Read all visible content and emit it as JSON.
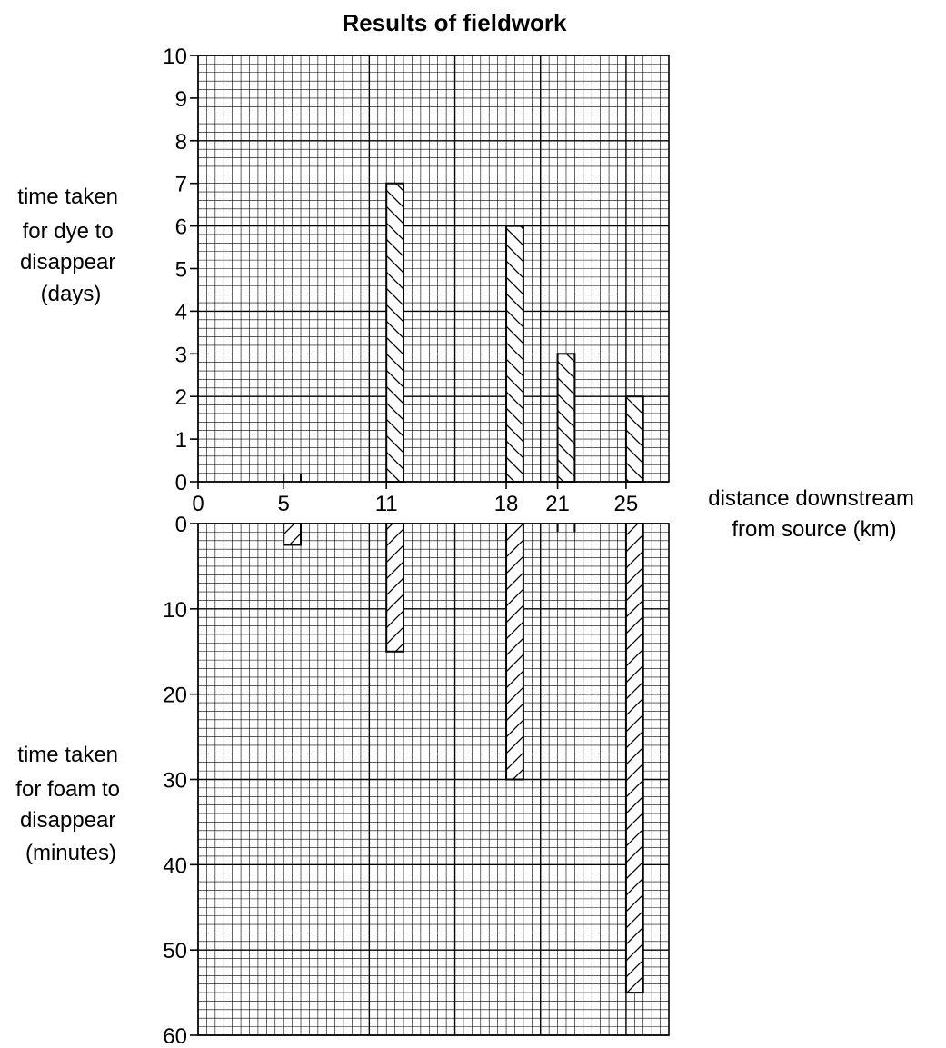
{
  "chart_data": {
    "type": "bar",
    "title": "Results of fieldwork",
    "x": {
      "label": [
        "distance downstream",
        "from source (km)"
      ],
      "range": [
        0,
        27.5
      ],
      "tick_labels": [
        "0",
        "5",
        "11",
        "18",
        "21",
        "25"
      ],
      "tick_values": [
        0,
        5,
        11,
        18,
        21,
        25
      ]
    },
    "panels": [
      {
        "name": "dye",
        "position": "top",
        "ylabel": [
          "time taken",
          "for dye to",
          "disappear",
          "(days)"
        ],
        "ylim": [
          0,
          10
        ],
        "y_ticks": [
          "0",
          "1",
          "2",
          "3",
          "4",
          "5",
          "6",
          "7",
          "8",
          "9",
          "10"
        ],
        "hatch": "backslash",
        "bars": [
          {
            "x": 5,
            "value": 0
          },
          {
            "x": 11,
            "value": 7
          },
          {
            "x": 18,
            "value": 6
          },
          {
            "x": 21,
            "value": 3
          },
          {
            "x": 25,
            "value": 2
          }
        ]
      },
      {
        "name": "foam",
        "position": "bottom",
        "ylabel": [
          "time taken",
          "for foam to",
          "disappear",
          "(minutes)"
        ],
        "ylim": [
          0,
          60
        ],
        "y_ticks": [
          "0",
          "10",
          "20",
          "30",
          "40",
          "50",
          "60"
        ],
        "hatch": "slash",
        "bars": [
          {
            "x": 5,
            "value": 2.5
          },
          {
            "x": 11,
            "value": 15
          },
          {
            "x": 18,
            "value": 30
          },
          {
            "x": 21,
            "value": 0
          },
          {
            "x": 25,
            "value": 55
          }
        ]
      }
    ],
    "grid": true,
    "bar_width_km": 1
  }
}
